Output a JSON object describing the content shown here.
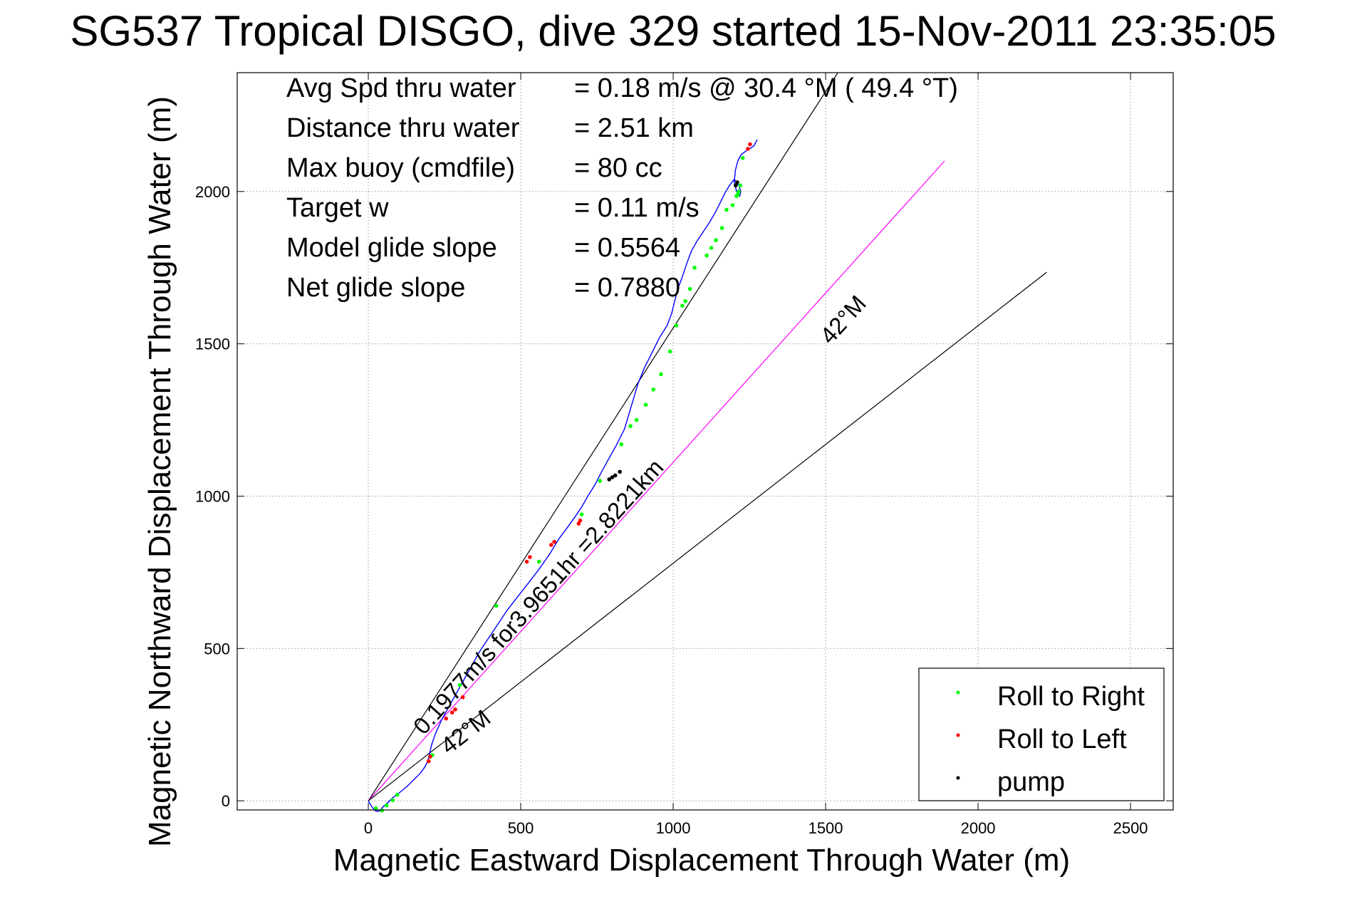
{
  "chart_data": {
    "type": "scatter",
    "title": "SG537 Tropical DISGO, dive 329 started 15-Nov-2011 23:35:05",
    "xlabel": "Magnetic Eastward Displacement Through Water (m)",
    "ylabel": "Magnetic Northward Displacement Through Water (m)",
    "xlim": [
      -430,
      2640
    ],
    "ylim": [
      -30,
      2390
    ],
    "xticks": [
      0,
      500,
      1000,
      1500,
      2000,
      2500
    ],
    "yticks": [
      0,
      500,
      1000,
      1500,
      2000
    ],
    "x_tick_labels": [
      "0",
      "500",
      "1000",
      "1500",
      "2000",
      "2500"
    ],
    "y_tick_labels": [
      "0",
      "500",
      "1000",
      "1500",
      "2000"
    ],
    "grid": true,
    "legend_position": "bottom-right",
    "stats": [
      {
        "label": "Avg Spd thru water",
        "value": "=  0.18 m/s @  30.4 °M ( 49.4 °T)"
      },
      {
        "label": "Distance thru water",
        "value": "=  2.51 km"
      },
      {
        "label": "Max buoy (cmdfile)",
        "value": "= 80 cc"
      },
      {
        "label": "Target w",
        "value": "= 0.11 m/s"
      },
      {
        "label": "Model glide slope",
        "value": "= 0.5564"
      },
      {
        "label": "Net glide slope",
        "value": "= 0.7880"
      }
    ],
    "annotations": {
      "speed_line": "0.1977m/s for3.9651hr =2.8221km",
      "heading_upper": "42°M",
      "heading_lower": "42°M"
    },
    "reference_lines": [
      {
        "name": "upper-bound-line",
        "color": "#000000",
        "x": [
          0,
          1540
        ],
        "y": [
          0,
          2390
        ]
      },
      {
        "name": "heading-line",
        "color": "#ff00ff",
        "x": [
          0,
          1890
        ],
        "y": [
          0,
          2100
        ]
      },
      {
        "name": "lower-bound-line",
        "color": "#000000",
        "x": [
          0,
          2225
        ],
        "y": [
          0,
          1735
        ]
      }
    ],
    "track": {
      "color": "#0000ff",
      "x": [
        0,
        12,
        22,
        32,
        40,
        50,
        65,
        80,
        100,
        125,
        150,
        170,
        185,
        195,
        200,
        208,
        220,
        240,
        265,
        290,
        315,
        340,
        365,
        395,
        425,
        455,
        490,
        525,
        560,
        595,
        625,
        655,
        680,
        700,
        720,
        745,
        765,
        790,
        815,
        840,
        855,
        870,
        885,
        905,
        930,
        955,
        980,
        995,
        1005,
        1015,
        1030,
        1045,
        1060,
        1080,
        1100,
        1120,
        1140,
        1155,
        1170,
        1185,
        1200,
        1215,
        1222,
        1218,
        1208,
        1200,
        1204,
        1212,
        1222,
        1235,
        1250,
        1265,
        1275
      ],
      "y": [
        0,
        -20,
        -32,
        -35,
        -30,
        -18,
        -5,
        10,
        25,
        45,
        70,
        90,
        110,
        130,
        150,
        185,
        220,
        265,
        310,
        355,
        400,
        445,
        490,
        535,
        580,
        625,
        670,
        715,
        760,
        810,
        860,
        900,
        935,
        965,
        1000,
        1040,
        1080,
        1125,
        1170,
        1220,
        1270,
        1320,
        1370,
        1420,
        1470,
        1520,
        1560,
        1600,
        1640,
        1680,
        1720,
        1765,
        1805,
        1840,
        1870,
        1900,
        1935,
        1965,
        1995,
        2020,
        2040,
        2020,
        2000,
        1985,
        2000,
        2030,
        2070,
        2100,
        2120,
        2130,
        2140,
        2150,
        2170
      ]
    },
    "series": [
      {
        "name": "Roll to Right",
        "color": "#00ff00",
        "x": [
          25,
          45,
          60,
          80,
          95,
          210,
          300,
          420,
          560,
          700,
          760,
          830,
          860,
          880,
          910,
          935,
          960,
          990,
          1010,
          1030,
          1040,
          1055,
          1070,
          1110,
          1125,
          1140,
          1160,
          1175,
          1195,
          1208,
          1212,
          1215,
          1220,
          1228
        ],
        "y": [
          -25,
          -32,
          -15,
          2,
          20,
          150,
          380,
          640,
          785,
          940,
          1050,
          1170,
          1230,
          1250,
          1300,
          1350,
          1400,
          1475,
          1560,
          1625,
          1640,
          1680,
          1750,
          1790,
          1815,
          1840,
          1880,
          1940,
          1955,
          1985,
          1990,
          2000,
          2020,
          2110
        ]
      },
      {
        "name": "Roll to Left",
        "color": "#ff0000",
        "x": [
          198,
          203,
          255,
          275,
          285,
          310,
          520,
          530,
          600,
          610,
          690,
          695,
          1245,
          1252
        ],
        "y": [
          130,
          145,
          270,
          290,
          300,
          340,
          785,
          800,
          840,
          850,
          910,
          920,
          2140,
          2155
        ]
      },
      {
        "name": "pump",
        "color": "#000000",
        "x": [
          790,
          800,
          810,
          825,
          1205,
          1210
        ],
        "y": [
          1055,
          1062,
          1068,
          1080,
          2020,
          2030
        ]
      }
    ]
  }
}
